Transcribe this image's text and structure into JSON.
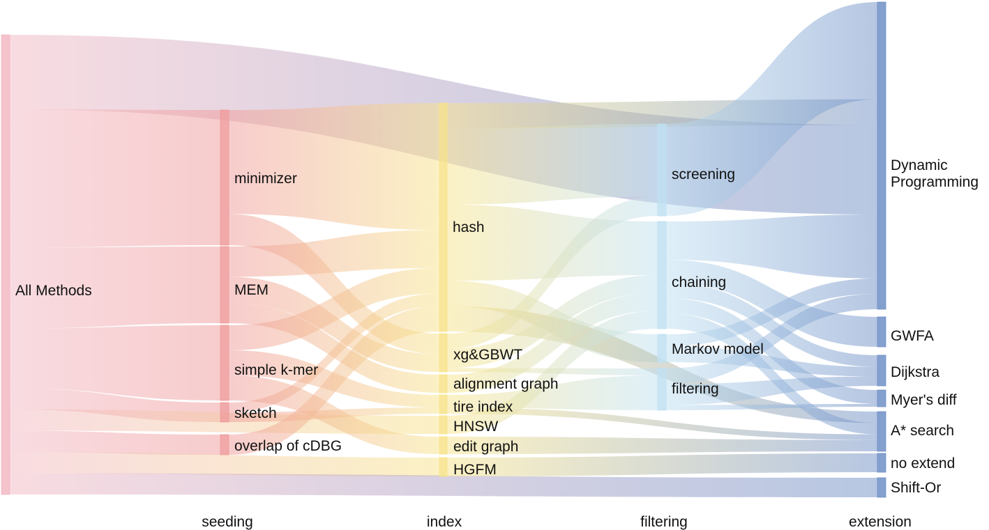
{
  "diagram": {
    "type": "sankey",
    "stages": [
      {
        "id": "seeding",
        "label": "seeding"
      },
      {
        "id": "index",
        "label": "index"
      },
      {
        "id": "filtering",
        "label": "filtering"
      },
      {
        "id": "extension",
        "label": "extension"
      }
    ],
    "nodes": [
      {
        "id": "all",
        "label": "All Methods",
        "color": "#f2b8c3"
      },
      {
        "id": "minimizer",
        "label": "minimizer",
        "color": "#ef9a9a"
      },
      {
        "id": "mem",
        "label": "MEM",
        "color": "#ef9a9a"
      },
      {
        "id": "simple",
        "label": "simple k-mer",
        "color": "#ef9a9a"
      },
      {
        "id": "sketch",
        "label": "sketch",
        "color": "#ef9a9a"
      },
      {
        "id": "cdbg",
        "label": "overlap of cDBG",
        "color": "#ef9a9a"
      },
      {
        "id": "hash",
        "label": "hash",
        "color": "#f7e38a"
      },
      {
        "id": "xg",
        "label": "xg&GBWT",
        "color": "#f7e38a"
      },
      {
        "id": "alig",
        "label": "alignment graph",
        "color": "#f7e38a"
      },
      {
        "id": "tire",
        "label": "tire index",
        "color": "#f7e38a"
      },
      {
        "id": "hnsw",
        "label": "HNSW",
        "color": "#f7e38a"
      },
      {
        "id": "edit",
        "label": "edit graph",
        "color": "#f7e38a"
      },
      {
        "id": "hgfm",
        "label": "HGFM",
        "color": "#f7e38a"
      },
      {
        "id": "screening",
        "label": "screening",
        "color": "#bfe0f2"
      },
      {
        "id": "chaining",
        "label": "chaining",
        "color": "#bfe0f2"
      },
      {
        "id": "markov",
        "label": "Markov model",
        "color": "#bfe0f2"
      },
      {
        "id": "filtering",
        "label": "filtering",
        "color": "#bfe0f2"
      },
      {
        "id": "dp",
        "label": "Dynamic\nProgramming",
        "color": "#6f8fc6"
      },
      {
        "id": "gwfa",
        "label": "GWFA",
        "color": "#6f8fc6"
      },
      {
        "id": "dijkstra",
        "label": "Dijkstra",
        "color": "#6f8fc6"
      },
      {
        "id": "myers",
        "label": "Myer's diff",
        "color": "#6f8fc6"
      },
      {
        "id": "astar",
        "label": "A* search",
        "color": "#6f8fc6"
      },
      {
        "id": "noext",
        "label": "no extend",
        "color": "#6f8fc6"
      },
      {
        "id": "shiftor",
        "label": "Shift-Or",
        "color": "#6f8fc6"
      }
    ],
    "links": [
      {
        "source": "all",
        "target": "dp",
        "value": 3.5
      },
      {
        "source": "all",
        "target": "minimizer",
        "value": 6.5
      },
      {
        "source": "all",
        "target": "mem",
        "value": 3.8
      },
      {
        "source": "all",
        "target": "simple",
        "value": 2.8
      },
      {
        "source": "all",
        "target": "sketch",
        "value": 1
      },
      {
        "source": "all",
        "target": "cdbg",
        "value": 1
      },
      {
        "source": "all",
        "target": "hnsw",
        "value": 1
      },
      {
        "source": "all",
        "target": "hgfm",
        "value": 1
      },
      {
        "source": "all",
        "target": "shiftor",
        "value": 1
      },
      {
        "source": "minimizer",
        "target": "hash",
        "value": 5
      },
      {
        "source": "minimizer",
        "target": "xg",
        "value": 1.5
      },
      {
        "source": "mem",
        "target": "hash",
        "value": 1.5
      },
      {
        "source": "mem",
        "target": "xg",
        "value": 1.3
      },
      {
        "source": "mem",
        "target": "alig",
        "value": 1
      },
      {
        "source": "simple",
        "target": "hash",
        "value": 1
      },
      {
        "source": "simple",
        "target": "alig",
        "value": 0
      },
      {
        "source": "simple",
        "target": "tire",
        "value": 1
      },
      {
        "source": "simple",
        "target": "edit",
        "value": 1
      },
      {
        "source": "simple",
        "target": "hgfm",
        "value": 0
      },
      {
        "source": "sketch",
        "target": "hash",
        "value": 0.5
      },
      {
        "source": "sketch",
        "target": "tire",
        "value": 0.5
      },
      {
        "source": "cdbg",
        "target": "hash",
        "value": 1
      },
      {
        "source": "hash",
        "target": "dp",
        "value": 1
      },
      {
        "source": "hash",
        "target": "screening",
        "value": 3
      },
      {
        "source": "hash",
        "target": "chaining",
        "value": 3
      },
      {
        "source": "hash",
        "target": "markov",
        "value": 1
      },
      {
        "source": "hash",
        "target": "astar",
        "value": 1
      },
      {
        "source": "xg",
        "target": "screening",
        "value": 0.8
      },
      {
        "source": "xg",
        "target": "chaining",
        "value": 1
      },
      {
        "source": "xg",
        "target": "filtering",
        "value": 0.2
      },
      {
        "source": "alig",
        "target": "chaining",
        "value": 1
      },
      {
        "source": "tire",
        "target": "filtering",
        "value": 1
      },
      {
        "source": "tire",
        "target": "astar",
        "value": 0.5
      },
      {
        "source": "hnsw",
        "target": "chaining",
        "value": 1
      },
      {
        "source": "edit",
        "target": "astar",
        "value": 1
      },
      {
        "source": "hgfm",
        "target": "noext",
        "value": 1
      },
      {
        "source": "screening",
        "target": "dp",
        "value": 3.8
      },
      {
        "source": "chaining",
        "target": "dp",
        "value": 2.5
      },
      {
        "source": "chaining",
        "target": "gwfa",
        "value": 1.5
      },
      {
        "source": "chaining",
        "target": "dijkstra",
        "value": 1
      },
      {
        "source": "chaining",
        "target": "myers",
        "value": 1
      },
      {
        "source": "chaining",
        "target": "astar",
        "value": 1
      },
      {
        "source": "markov",
        "target": "dp",
        "value": 0.6
      },
      {
        "source": "markov",
        "target": "dijkstra",
        "value": 0.8
      },
      {
        "source": "filtering",
        "target": "dp",
        "value": 0.6
      },
      {
        "source": "filtering",
        "target": "dijkstra",
        "value": 0.8
      },
      {
        "source": "filtering",
        "target": "myers",
        "value": 0.2
      }
    ]
  }
}
